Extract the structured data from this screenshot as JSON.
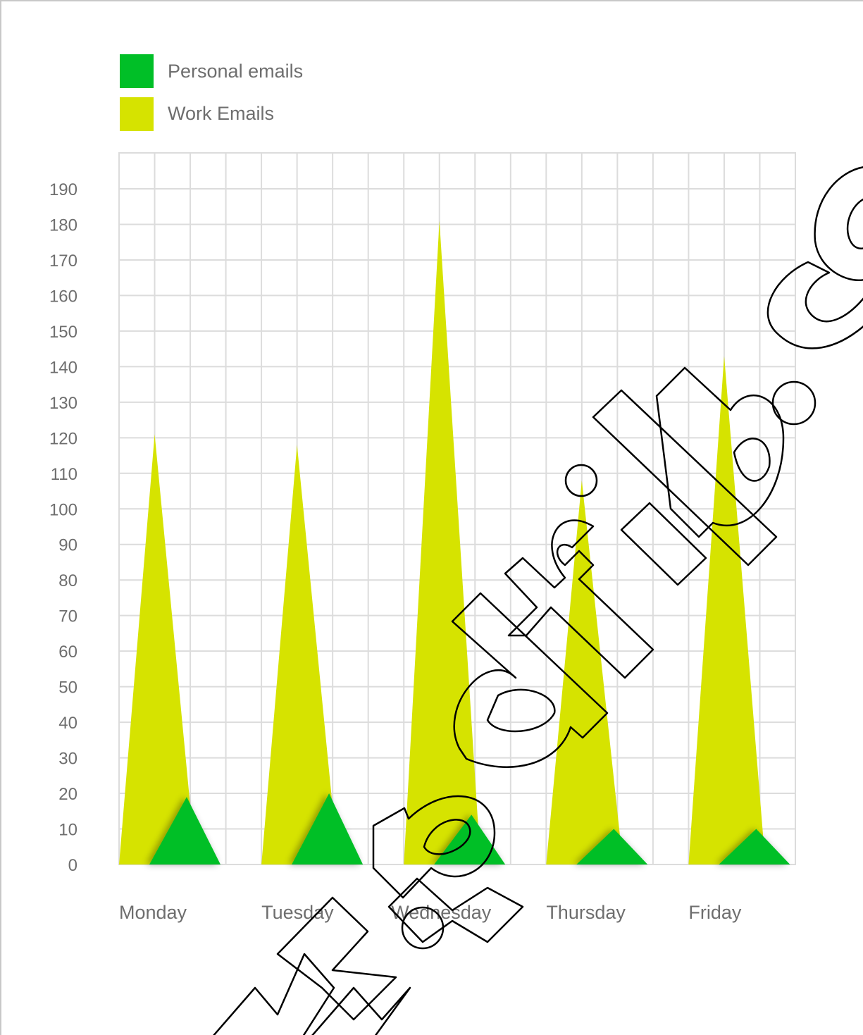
{
  "chart_data": {
    "type": "area",
    "categories": [
      "Monday",
      "Tuesday",
      "Wednesday",
      "Thursday",
      "Friday"
    ],
    "series": [
      {
        "name": "Personal emails",
        "color": "#00bf27",
        "values": [
          19,
          20,
          14,
          10,
          10
        ]
      },
      {
        "name": "Work Emails",
        "color": "#d6e300",
        "values": [
          121,
          118,
          181,
          108,
          143
        ]
      }
    ],
    "y_ticks": [
      "0",
      "10",
      "20",
      "30",
      "40",
      "50",
      "60",
      "70",
      "80",
      "90",
      "100",
      "110",
      "120",
      "130",
      "140",
      "150",
      "160",
      "170",
      "180",
      "190"
    ],
    "ylim": [
      0,
      200
    ],
    "grid": true,
    "legend_position": "top-left",
    "title": "",
    "xlabel": "",
    "ylabel": ""
  },
  "watermark": {
    "text": "www.pdflib.co",
    "style": "outlined-diagonal"
  }
}
